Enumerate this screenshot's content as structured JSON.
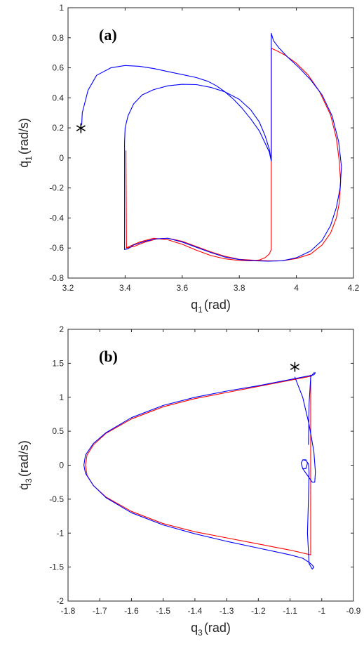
{
  "colors": {
    "reference": "#ff0000",
    "actual": "#0000ff",
    "axis": "#262626"
  },
  "chart_data": [
    {
      "type": "line",
      "label": "(a)",
      "xlabel": {
        "main": "q",
        "sub": "1",
        "unit": "(rad)"
      },
      "ylabel": {
        "main": "q̇",
        "sub": "1",
        "unit": "(rad/s)"
      },
      "xlim": [
        3.2,
        4.2
      ],
      "ylim": [
        -0.8,
        1.0
      ],
      "xticks": [
        3.2,
        3.4,
        3.6,
        3.8,
        4.0,
        4.2
      ],
      "xtick_labels": [
        "3.2",
        "3.4",
        "3.6",
        "3.8",
        "4",
        "4.2"
      ],
      "yticks": [
        -0.8,
        -0.6,
        -0.4,
        -0.2,
        0,
        0.2,
        0.4,
        0.6,
        0.8,
        1.0
      ],
      "ytick_labels": [
        "-0.8",
        "-0.6",
        "-0.4",
        "-0.2",
        "0",
        "0.2",
        "0.4",
        "0.6",
        "0.8",
        "1"
      ],
      "grid": false,
      "marker": {
        "symbol": "*",
        "x": 3.245,
        "y": 0.2
      },
      "series": [
        {
          "color": "red",
          "x": [
            3.403,
            3.42,
            3.45,
            3.5,
            3.55,
            3.6,
            3.65,
            3.7,
            3.75,
            3.8,
            3.84,
            3.87,
            3.89,
            3.905,
            3.912,
            3.912,
            3.93,
            3.96,
            4.0,
            4.04,
            4.08,
            4.12,
            4.14,
            4.15,
            4.155,
            4.15,
            4.14,
            4.12,
            4.09,
            4.05,
            4.0,
            3.95,
            3.9,
            3.86,
            3.8,
            3.75,
            3.7,
            3.65,
            3.6,
            3.55,
            3.51,
            3.47,
            3.43,
            3.405,
            3.403,
            3.403
          ],
          "y": [
            -0.6,
            -0.585,
            -0.56,
            -0.535,
            -0.545,
            -0.575,
            -0.615,
            -0.65,
            -0.672,
            -0.683,
            -0.685,
            -0.68,
            -0.665,
            -0.64,
            -0.61,
            0.73,
            0.715,
            0.685,
            0.63,
            0.555,
            0.445,
            0.285,
            0.13,
            -0.02,
            -0.16,
            -0.3,
            -0.4,
            -0.5,
            -0.58,
            -0.64,
            -0.67,
            -0.685,
            -0.685,
            -0.682,
            -0.675,
            -0.655,
            -0.625,
            -0.59,
            -0.555,
            -0.535,
            -0.54,
            -0.56,
            -0.59,
            -0.6,
            0.0,
            0.05
          ]
        },
        {
          "color": "blue",
          "x": [
            3.248,
            3.25,
            3.27,
            3.3,
            3.35,
            3.4,
            3.45,
            3.5,
            3.55,
            3.6,
            3.65,
            3.69,
            3.72,
            3.75,
            3.78,
            3.81,
            3.84,
            3.87,
            3.89,
            3.905,
            3.912,
            3.912,
            3.92,
            3.94,
            3.97,
            4.01,
            4.05,
            4.09,
            4.125,
            4.148,
            4.158,
            4.153,
            4.14,
            4.12,
            4.09,
            4.05,
            4.0,
            3.95,
            3.9,
            3.86,
            3.8,
            3.75,
            3.7,
            3.65,
            3.6,
            3.55,
            3.51,
            3.47,
            3.43,
            3.41,
            3.398,
            3.398,
            3.4,
            3.41,
            3.43,
            3.46,
            3.5,
            3.55,
            3.6,
            3.65,
            3.7,
            3.75,
            3.8,
            3.84,
            3.87,
            3.89,
            3.905,
            3.912
          ],
          "y": [
            0.22,
            0.3,
            0.45,
            0.55,
            0.6,
            0.615,
            0.61,
            0.595,
            0.575,
            0.555,
            0.535,
            0.51,
            0.48,
            0.44,
            0.39,
            0.33,
            0.26,
            0.18,
            0.1,
            0.04,
            -0.02,
            0.83,
            0.78,
            0.73,
            0.67,
            0.6,
            0.52,
            0.42,
            0.28,
            0.11,
            -0.06,
            -0.2,
            -0.33,
            -0.45,
            -0.55,
            -0.62,
            -0.665,
            -0.685,
            -0.688,
            -0.685,
            -0.677,
            -0.66,
            -0.63,
            -0.595,
            -0.56,
            -0.535,
            -0.538,
            -0.555,
            -0.58,
            -0.605,
            -0.61,
            0.1,
            0.2,
            0.28,
            0.36,
            0.42,
            0.455,
            0.48,
            0.49,
            0.488,
            0.47,
            0.44,
            0.39,
            0.32,
            0.24,
            0.15,
            0.06,
            -0.02
          ]
        }
      ]
    },
    {
      "type": "line",
      "label": "(b)",
      "xlabel": {
        "main": "q",
        "sub": "3",
        "unit": "(rad)"
      },
      "ylabel": {
        "main": "q̇",
        "sub": "3",
        "unit": "(rad/s)"
      },
      "xlim": [
        -1.8,
        -0.9
      ],
      "ylim": [
        -2.0,
        2.0
      ],
      "xticks": [
        -1.8,
        -1.7,
        -1.6,
        -1.5,
        -1.4,
        -1.3,
        -1.2,
        -1.1,
        -1.0,
        -0.9
      ],
      "xtick_labels": [
        "-1.8",
        "-1.7",
        "-1.6",
        "-1.5",
        "-1.4",
        "-1.3",
        "-1.2",
        "-1.1",
        "-1",
        "-0.9"
      ],
      "yticks": [
        -2.0,
        -1.5,
        -1.0,
        -0.5,
        0,
        0.5,
        1.0,
        1.5,
        2.0
      ],
      "ytick_labels": [
        "-2",
        "-1.5",
        "-1",
        "-0.5",
        "0",
        "0.5",
        "1",
        "1.5",
        "2"
      ],
      "grid": false,
      "marker": {
        "symbol": "*",
        "x": -1.085,
        "y": 1.45
      },
      "series": [
        {
          "color": "red",
          "x": [
            -1.035,
            -1.035,
            -1.1,
            -1.2,
            -1.3,
            -1.4,
            -1.5,
            -1.6,
            -1.68,
            -1.72,
            -1.74,
            -1.745,
            -1.74,
            -1.72,
            -1.68,
            -1.6,
            -1.5,
            -1.4,
            -1.3,
            -1.2,
            -1.1,
            -1.035,
            -1.035
          ],
          "y": [
            1.33,
            -1.32,
            -1.25,
            -1.16,
            -1.07,
            -0.98,
            -0.86,
            -0.68,
            -0.47,
            -0.3,
            -0.15,
            0.0,
            0.15,
            0.3,
            0.47,
            0.68,
            0.86,
            0.98,
            1.07,
            1.16,
            1.25,
            1.31,
            1.33
          ]
        },
        {
          "color": "blue",
          "x": [
            -1.085,
            -1.06,
            -1.04,
            -1.025,
            -1.02,
            -1.022,
            -1.03,
            -1.045,
            -1.06,
            -1.065,
            -1.06,
            -1.05,
            -1.045,
            -1.05,
            -1.06,
            -1.065,
            -1.06,
            -1.05,
            -1.042,
            -1.04,
            -1.042,
            -1.045,
            -1.04,
            -1.03,
            -1.025,
            -1.03,
            -1.04,
            -1.06,
            -1.1,
            -1.2,
            -1.3,
            -1.4,
            -1.5,
            -1.6,
            -1.68,
            -1.72,
            -1.745,
            -1.75,
            -1.745,
            -1.72,
            -1.68,
            -1.6,
            -1.5,
            -1.4,
            -1.3,
            -1.2,
            -1.1,
            -1.025,
            -1.02,
            -1.025,
            -1.035,
            -1.04,
            -1.042
          ],
          "y": [
            1.3,
            1.0,
            0.6,
            0.2,
            -0.1,
            -0.25,
            -0.25,
            -0.15,
            -0.05,
            0.03,
            0.08,
            0.08,
            0.03,
            -0.05,
            -0.05,
            0.03,
            0.08,
            0.07,
            0.02,
            -0.1,
            -0.5,
            -1.0,
            -1.45,
            -1.53,
            -1.5,
            -1.47,
            -1.43,
            -1.37,
            -1.32,
            -1.22,
            -1.12,
            -1.01,
            -0.88,
            -0.7,
            -0.48,
            -0.3,
            -0.12,
            0.0,
            0.15,
            0.32,
            0.48,
            0.7,
            0.88,
            1.0,
            1.09,
            1.17,
            1.26,
            1.33,
            1.36,
            1.36,
            1.3,
            0.9,
            0.3
          ]
        }
      ]
    }
  ]
}
